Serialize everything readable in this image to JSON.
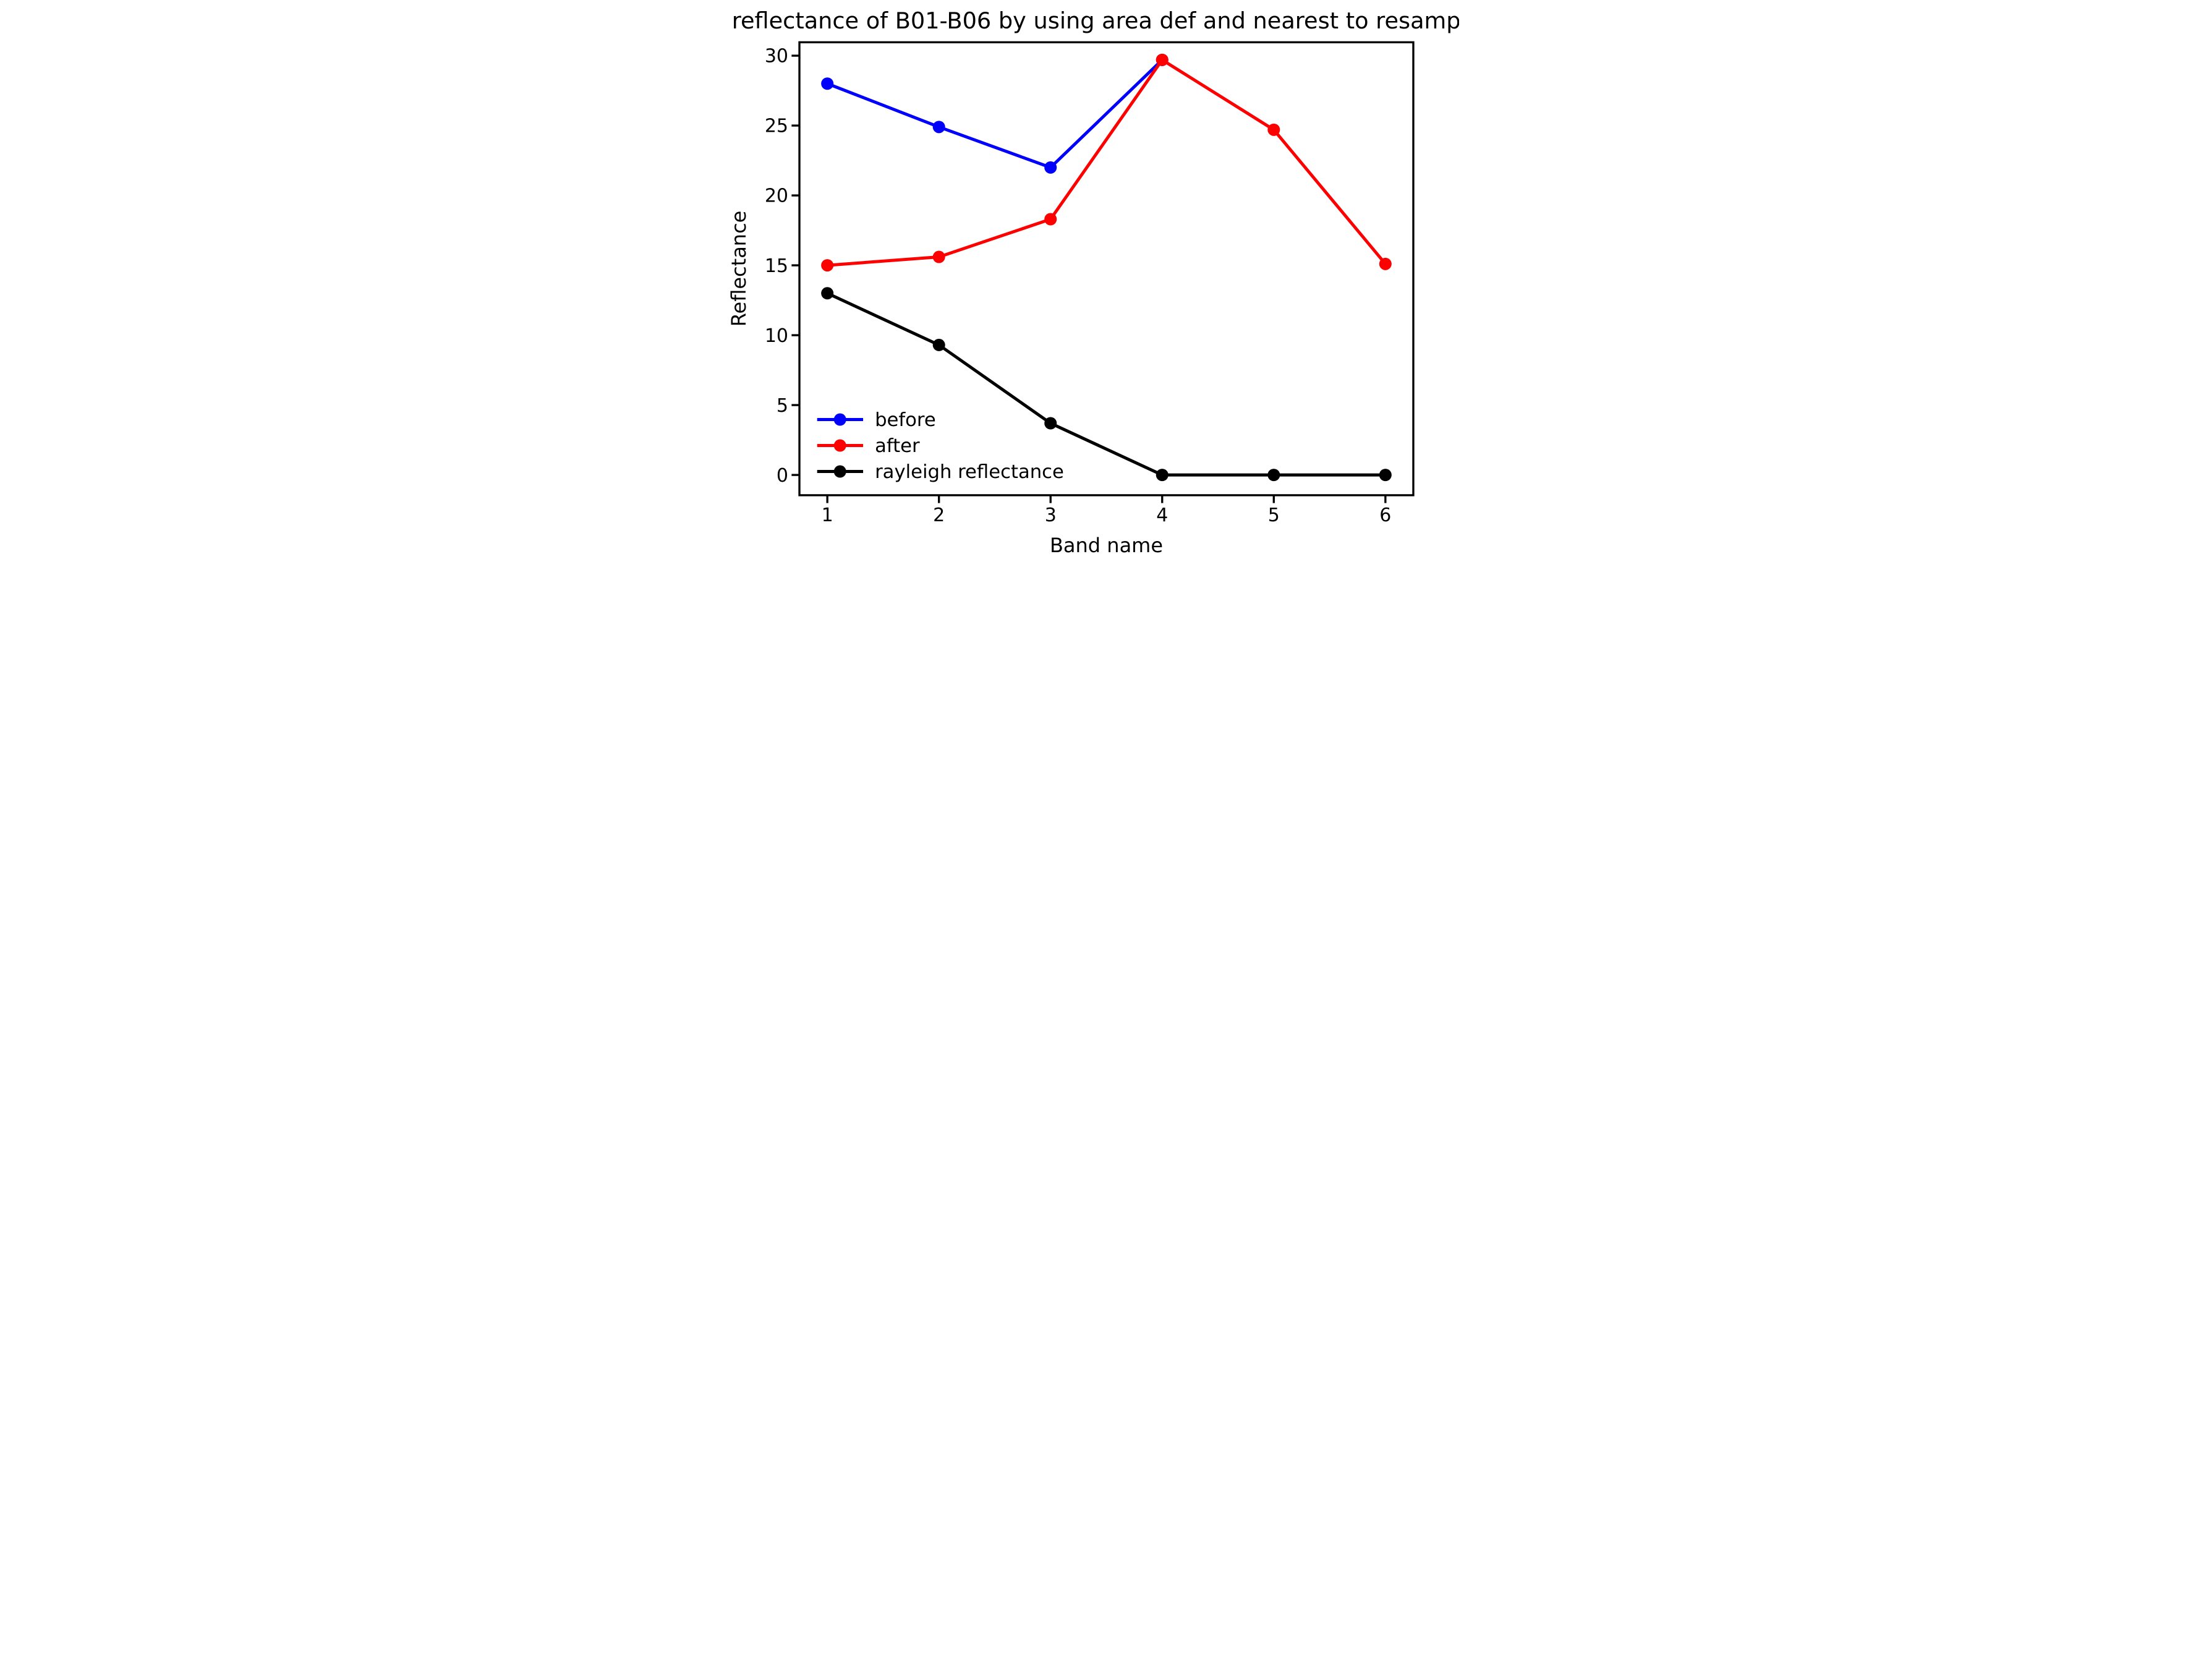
{
  "figure": {
    "title": "reflectance of B01-B06 by using area def and nearest to resample",
    "xlabel": "Band name",
    "ylabel": "Reflectance",
    "background": "#ffffff"
  },
  "chart_data": {
    "type": "line",
    "title": "reflectance of B01-B06 by using area def and nearest to resample",
    "xlabel": "Band name",
    "ylabel": "Reflectance",
    "series": [
      {
        "name": "before",
        "color": "#0000ff",
        "x": [
          1,
          2,
          3,
          4
        ],
        "values": [
          28.0,
          24.9,
          22.0,
          29.7
        ]
      },
      {
        "name": "after",
        "color": "#ff0000",
        "x": [
          1,
          2,
          3,
          4,
          5,
          6
        ],
        "values": [
          15.0,
          15.6,
          18.3,
          29.7,
          24.7,
          15.1
        ]
      },
      {
        "name": "rayleigh reflectance",
        "color": "#000000",
        "x": [
          1,
          2,
          3,
          4,
          5,
          6
        ],
        "values": [
          13.0,
          9.3,
          3.7,
          0.0,
          0.0,
          0.0
        ]
      }
    ],
    "xticks": [
      "1",
      "2",
      "3",
      "4",
      "5",
      "6"
    ],
    "yticks": [
      "0",
      "5",
      "10",
      "15",
      "20",
      "25",
      "30"
    ],
    "xtick_values": [
      1,
      2,
      3,
      4,
      5,
      6
    ],
    "ytick_values": [
      0,
      5,
      10,
      15,
      20,
      25,
      30
    ],
    "xlim": [
      0.75,
      6.25
    ],
    "ylim": [
      -1.45,
      30.96
    ],
    "grid": false,
    "legend_position": "lower left",
    "marker": "o",
    "line_color_black": "#000000"
  },
  "legend": {
    "items": [
      {
        "label": "before",
        "color": "#0000ff"
      },
      {
        "label": "after",
        "color": "#ff0000"
      },
      {
        "label": "rayleigh reflectance",
        "color": "#000000"
      }
    ]
  }
}
